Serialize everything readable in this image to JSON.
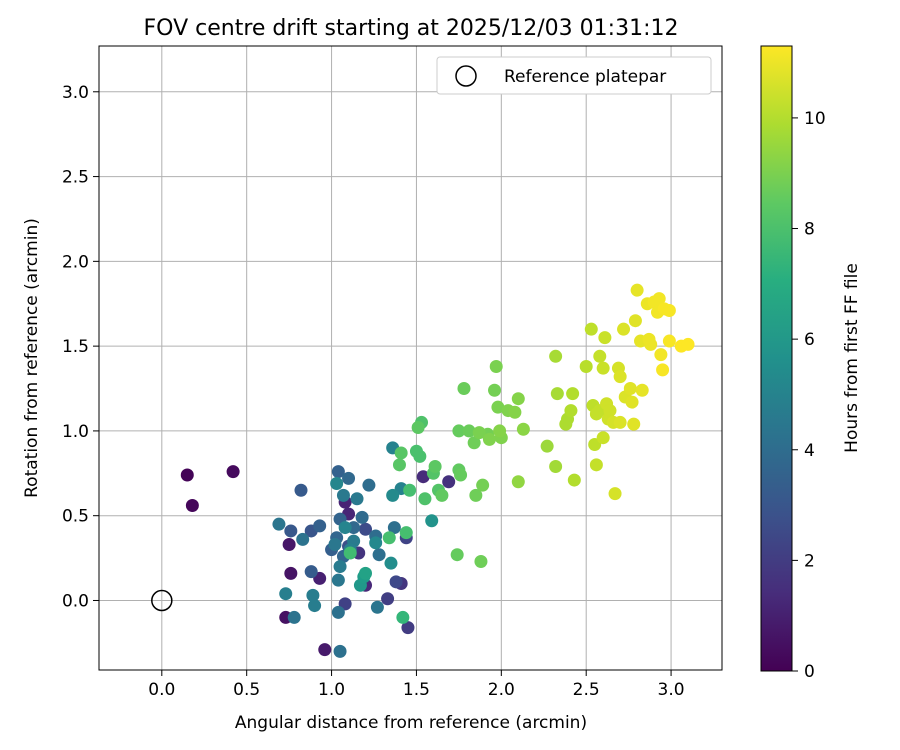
{
  "chart_data": {
    "type": "scatter",
    "title": "FOV centre drift starting at 2025/12/03 01:31:12",
    "xlabel": "Angular distance from reference (arcmin)",
    "ylabel": "Rotation from reference (arcmin)",
    "xlim": [
      -0.37,
      3.3
    ],
    "ylim": [
      -0.41,
      3.27
    ],
    "xticks": [
      0.0,
      0.5,
      1.0,
      1.5,
      2.0,
      2.5,
      3.0
    ],
    "xtick_labels": [
      "0.0",
      "0.5",
      "1.0",
      "1.5",
      "2.0",
      "2.5",
      "3.0"
    ],
    "yticks": [
      0.0,
      0.5,
      1.0,
      1.5,
      2.0,
      2.5,
      3.0
    ],
    "ytick_labels": [
      "0.0",
      "0.5",
      "1.0",
      "1.5",
      "2.0",
      "2.5",
      "3.0"
    ],
    "grid": true,
    "legend": {
      "position": "top-right",
      "entries": [
        "Reference platepar"
      ]
    },
    "reference_point": {
      "x": 0.0,
      "y": 0.0
    },
    "colorbar": {
      "label": "Hours from first FF file",
      "colormap": "viridis",
      "range": [
        0,
        11.3
      ],
      "ticks": [
        0,
        2,
        4,
        6,
        8,
        10
      ],
      "tick_labels": [
        "0",
        "2",
        "4",
        "6",
        "8",
        "10"
      ]
    },
    "points": [
      {
        "x": 0.15,
        "y": 0.74,
        "c": 0.1
      },
      {
        "x": 0.18,
        "y": 0.56,
        "c": 0.2
      },
      {
        "x": 0.42,
        "y": 0.76,
        "c": 0.3
      },
      {
        "x": 0.73,
        "y": -0.1,
        "c": 0.5
      },
      {
        "x": 0.76,
        "y": 0.16,
        "c": 0.6
      },
      {
        "x": 0.75,
        "y": 0.33,
        "c": 0.7
      },
      {
        "x": 0.96,
        "y": -0.29,
        "c": 0.8
      },
      {
        "x": 0.93,
        "y": 0.13,
        "c": 1.0
      },
      {
        "x": 1.08,
        "y": 0.58,
        "c": 1.1
      },
      {
        "x": 1.1,
        "y": 0.51,
        "c": 1.2
      },
      {
        "x": 1.2,
        "y": 0.09,
        "c": 1.3
      },
      {
        "x": 1.54,
        "y": 0.73,
        "c": 1.4
      },
      {
        "x": 1.69,
        "y": 0.7,
        "c": 1.6
      },
      {
        "x": 1.16,
        "y": 0.28,
        "c": 1.7
      },
      {
        "x": 1.41,
        "y": 0.1,
        "c": 1.8
      },
      {
        "x": 1.45,
        "y": -0.16,
        "c": 2.0
      },
      {
        "x": 1.33,
        "y": 0.01,
        "c": 2.1
      },
      {
        "x": 1.08,
        "y": -0.02,
        "c": 2.2
      },
      {
        "x": 1.44,
        "y": 0.37,
        "c": 2.3
      },
      {
        "x": 1.38,
        "y": 0.11,
        "c": 2.5
      },
      {
        "x": 1.2,
        "y": 0.42,
        "c": 2.6
      },
      {
        "x": 1.1,
        "y": 0.32,
        "c": 2.8
      },
      {
        "x": 0.88,
        "y": 0.41,
        "c": 3.0
      },
      {
        "x": 0.76,
        "y": 0.41,
        "c": 3.1
      },
      {
        "x": 0.82,
        "y": 0.65,
        "c": 3.2
      },
      {
        "x": 0.88,
        "y": 0.17,
        "c": 3.3
      },
      {
        "x": 1.0,
        "y": 0.3,
        "c": 3.4
      },
      {
        "x": 0.93,
        "y": 0.44,
        "c": 3.5
      },
      {
        "x": 1.04,
        "y": 0.76,
        "c": 3.5
      },
      {
        "x": 1.05,
        "y": 0.48,
        "c": 3.6
      },
      {
        "x": 1.03,
        "y": 0.37,
        "c": 3.7
      },
      {
        "x": 1.07,
        "y": 0.26,
        "c": 3.7
      },
      {
        "x": 1.1,
        "y": 0.72,
        "c": 3.8
      },
      {
        "x": 1.13,
        "y": 0.43,
        "c": 3.8
      },
      {
        "x": 1.18,
        "y": 0.49,
        "c": 3.9
      },
      {
        "x": 1.22,
        "y": 0.68,
        "c": 4.0
      },
      {
        "x": 1.26,
        "y": 0.38,
        "c": 4.0
      },
      {
        "x": 1.28,
        "y": 0.27,
        "c": 4.1
      },
      {
        "x": 1.37,
        "y": 0.43,
        "c": 4.1
      },
      {
        "x": 1.05,
        "y": -0.3,
        "c": 4.2
      },
      {
        "x": 1.04,
        "y": -0.07,
        "c": 4.2
      },
      {
        "x": 0.78,
        "y": -0.1,
        "c": 4.3
      },
      {
        "x": 0.83,
        "y": 0.36,
        "c": 4.3
      },
      {
        "x": 0.69,
        "y": 0.45,
        "c": 4.4
      },
      {
        "x": 1.27,
        "y": -0.04,
        "c": 4.4
      },
      {
        "x": 1.04,
        "y": 0.12,
        "c": 4.5
      },
      {
        "x": 1.02,
        "y": 0.33,
        "c": 4.5
      },
      {
        "x": 1.07,
        "y": 0.62,
        "c": 4.6
      },
      {
        "x": 1.15,
        "y": 0.6,
        "c": 4.6
      },
      {
        "x": 1.05,
        "y": 0.2,
        "c": 4.7
      },
      {
        "x": 1.13,
        "y": 0.35,
        "c": 4.7
      },
      {
        "x": 0.89,
        "y": 0.03,
        "c": 4.8
      },
      {
        "x": 0.9,
        "y": -0.03,
        "c": 4.8
      },
      {
        "x": 0.73,
        "y": 0.04,
        "c": 4.9
      },
      {
        "x": 1.11,
        "y": 0.3,
        "c": 4.9
      },
      {
        "x": 1.36,
        "y": 0.9,
        "c": 5.0
      },
      {
        "x": 1.41,
        "y": 0.66,
        "c": 5.0
      },
      {
        "x": 1.08,
        "y": 0.43,
        "c": 5.1
      },
      {
        "x": 1.03,
        "y": 0.69,
        "c": 5.2
      },
      {
        "x": 1.26,
        "y": 0.34,
        "c": 5.3
      },
      {
        "x": 1.36,
        "y": 0.62,
        "c": 5.4
      },
      {
        "x": 1.35,
        "y": 0.22,
        "c": 5.5
      },
      {
        "x": 1.59,
        "y": 0.47,
        "c": 5.8
      },
      {
        "x": 1.17,
        "y": 0.09,
        "c": 6.0
      },
      {
        "x": 1.19,
        "y": 0.14,
        "c": 6.2
      },
      {
        "x": 1.2,
        "y": 0.16,
        "c": 6.5
      },
      {
        "x": 1.42,
        "y": -0.1,
        "c": 7.5
      },
      {
        "x": 1.11,
        "y": 0.28,
        "c": 7.8
      },
      {
        "x": 1.34,
        "y": 0.37,
        "c": 7.9
      },
      {
        "x": 1.44,
        "y": 0.4,
        "c": 7.9
      },
      {
        "x": 1.46,
        "y": 0.65,
        "c": 7.9
      },
      {
        "x": 1.52,
        "y": 0.85,
        "c": 8.0
      },
      {
        "x": 1.5,
        "y": 0.88,
        "c": 8.0
      },
      {
        "x": 1.53,
        "y": 1.05,
        "c": 8.1
      },
      {
        "x": 1.55,
        "y": 0.6,
        "c": 8.1
      },
      {
        "x": 1.6,
        "y": 0.75,
        "c": 8.2
      },
      {
        "x": 1.63,
        "y": 0.65,
        "c": 8.2
      },
      {
        "x": 1.4,
        "y": 0.8,
        "c": 8.3
      },
      {
        "x": 1.41,
        "y": 0.87,
        "c": 8.3
      },
      {
        "x": 1.51,
        "y": 1.02,
        "c": 8.4
      },
      {
        "x": 1.61,
        "y": 0.79,
        "c": 8.4
      },
      {
        "x": 1.65,
        "y": 0.62,
        "c": 8.5
      },
      {
        "x": 1.75,
        "y": 0.77,
        "c": 8.5
      },
      {
        "x": 1.76,
        "y": 0.74,
        "c": 8.6
      },
      {
        "x": 1.75,
        "y": 1.0,
        "c": 8.6
      },
      {
        "x": 1.74,
        "y": 0.27,
        "c": 8.6
      },
      {
        "x": 1.78,
        "y": 1.25,
        "c": 8.7
      },
      {
        "x": 1.81,
        "y": 1.0,
        "c": 8.7
      },
      {
        "x": 1.84,
        "y": 0.93,
        "c": 8.8
      },
      {
        "x": 1.85,
        "y": 0.62,
        "c": 8.8
      },
      {
        "x": 1.88,
        "y": 0.23,
        "c": 8.8
      },
      {
        "x": 1.89,
        "y": 0.68,
        "c": 8.9
      },
      {
        "x": 1.92,
        "y": 0.98,
        "c": 8.9
      },
      {
        "x": 1.96,
        "y": 1.24,
        "c": 8.9
      },
      {
        "x": 1.97,
        "y": 1.38,
        "c": 9.0
      },
      {
        "x": 1.98,
        "y": 1.14,
        "c": 9.0
      },
      {
        "x": 2.0,
        "y": 0.96,
        "c": 9.1
      },
      {
        "x": 2.04,
        "y": 1.12,
        "c": 9.1
      },
      {
        "x": 2.08,
        "y": 1.11,
        "c": 9.2
      },
      {
        "x": 2.1,
        "y": 1.19,
        "c": 9.2
      },
      {
        "x": 2.13,
        "y": 1.01,
        "c": 9.3
      },
      {
        "x": 1.87,
        "y": 0.99,
        "c": 9.0
      },
      {
        "x": 1.93,
        "y": 0.95,
        "c": 9.1
      },
      {
        "x": 2.1,
        "y": 0.7,
        "c": 9.4
      },
      {
        "x": 1.99,
        "y": 1.0,
        "c": 9.2
      },
      {
        "x": 2.27,
        "y": 0.91,
        "c": 9.6
      },
      {
        "x": 2.32,
        "y": 0.79,
        "c": 9.7
      },
      {
        "x": 2.33,
        "y": 1.22,
        "c": 9.8
      },
      {
        "x": 2.32,
        "y": 1.44,
        "c": 9.8
      },
      {
        "x": 2.38,
        "y": 1.04,
        "c": 9.9
      },
      {
        "x": 2.39,
        "y": 1.07,
        "c": 9.9
      },
      {
        "x": 2.41,
        "y": 1.12,
        "c": 10.0
      },
      {
        "x": 2.42,
        "y": 1.22,
        "c": 10.0
      },
      {
        "x": 2.43,
        "y": 0.71,
        "c": 10.0
      },
      {
        "x": 2.5,
        "y": 1.38,
        "c": 10.1
      },
      {
        "x": 2.53,
        "y": 1.6,
        "c": 10.2
      },
      {
        "x": 2.54,
        "y": 1.15,
        "c": 10.2
      },
      {
        "x": 2.55,
        "y": 0.92,
        "c": 10.2
      },
      {
        "x": 2.56,
        "y": 0.8,
        "c": 10.3
      },
      {
        "x": 2.58,
        "y": 1.44,
        "c": 10.3
      },
      {
        "x": 2.58,
        "y": 1.12,
        "c": 10.3
      },
      {
        "x": 2.6,
        "y": 1.37,
        "c": 10.4
      },
      {
        "x": 2.61,
        "y": 1.55,
        "c": 10.4
      },
      {
        "x": 2.6,
        "y": 0.96,
        "c": 10.4
      },
      {
        "x": 2.62,
        "y": 1.16,
        "c": 10.5
      },
      {
        "x": 2.63,
        "y": 1.07,
        "c": 10.5
      },
      {
        "x": 2.64,
        "y": 1.12,
        "c": 10.5
      },
      {
        "x": 2.66,
        "y": 1.05,
        "c": 10.6
      },
      {
        "x": 2.67,
        "y": 0.63,
        "c": 10.6
      },
      {
        "x": 2.69,
        "y": 1.37,
        "c": 10.6
      },
      {
        "x": 2.7,
        "y": 1.32,
        "c": 10.7
      },
      {
        "x": 2.72,
        "y": 1.6,
        "c": 10.7
      },
      {
        "x": 2.7,
        "y": 1.05,
        "c": 10.7
      },
      {
        "x": 2.73,
        "y": 1.2,
        "c": 10.7
      },
      {
        "x": 2.76,
        "y": 1.25,
        "c": 10.8
      },
      {
        "x": 2.78,
        "y": 1.04,
        "c": 10.8
      },
      {
        "x": 2.79,
        "y": 1.65,
        "c": 10.8
      },
      {
        "x": 2.8,
        "y": 1.83,
        "c": 10.9
      },
      {
        "x": 2.82,
        "y": 1.53,
        "c": 10.9
      },
      {
        "x": 2.83,
        "y": 1.24,
        "c": 10.9
      },
      {
        "x": 2.86,
        "y": 1.75,
        "c": 11.0
      },
      {
        "x": 2.87,
        "y": 1.54,
        "c": 11.0
      },
      {
        "x": 2.88,
        "y": 1.51,
        "c": 11.0
      },
      {
        "x": 2.9,
        "y": 1.76,
        "c": 11.1
      },
      {
        "x": 2.92,
        "y": 1.7,
        "c": 11.1
      },
      {
        "x": 2.93,
        "y": 1.78,
        "c": 11.1
      },
      {
        "x": 2.94,
        "y": 1.45,
        "c": 11.1
      },
      {
        "x": 2.95,
        "y": 1.36,
        "c": 11.2
      },
      {
        "x": 2.96,
        "y": 1.72,
        "c": 11.2
      },
      {
        "x": 2.99,
        "y": 1.71,
        "c": 11.2
      },
      {
        "x": 2.99,
        "y": 1.53,
        "c": 11.2
      },
      {
        "x": 3.06,
        "y": 1.5,
        "c": 11.3
      },
      {
        "x": 3.1,
        "y": 1.51,
        "c": 11.3
      },
      {
        "x": 2.77,
        "y": 1.17,
        "c": 10.8
      },
      {
        "x": 2.56,
        "y": 1.1,
        "c": 10.3
      }
    ]
  }
}
